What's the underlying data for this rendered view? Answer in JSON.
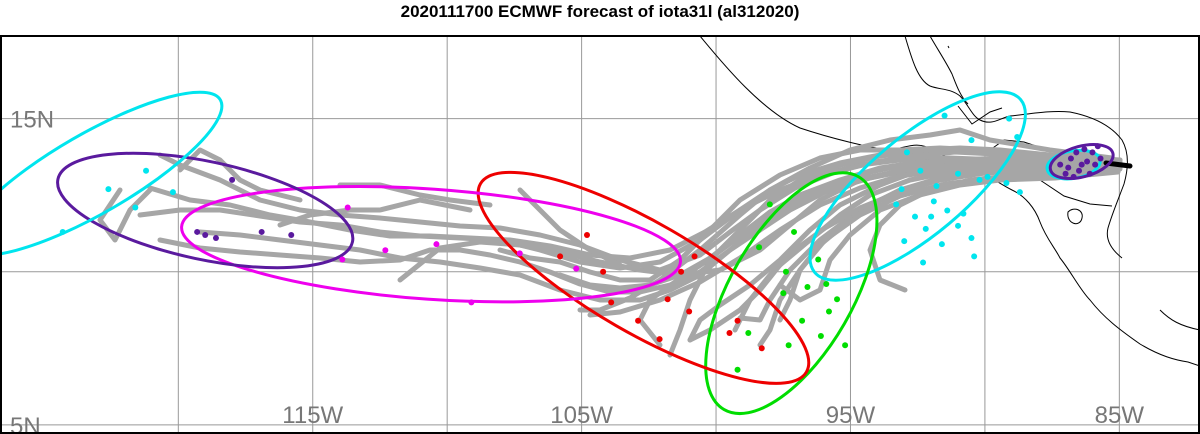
{
  "title": "2020111700 ECMWF forecast of iota31l (al312020)",
  "map": {
    "lon_range": [
      -126,
      -82
    ],
    "lat_range": [
      4.7,
      17.7
    ],
    "lon_gridlines": [
      -120,
      -115,
      -110,
      -105,
      -100,
      -95,
      -90,
      -85
    ],
    "lat_gridlines": [
      5,
      10,
      15
    ],
    "lon_tick_labels": [
      {
        "lon": -115,
        "label": "115W"
      },
      {
        "lon": -105,
        "label": "105W"
      },
      {
        "lon": -95,
        "label": "95W"
      },
      {
        "lon": -85,
        "label": "85W"
      }
    ],
    "lat_tick_labels": [
      {
        "lat": 15,
        "label": "15N"
      },
      {
        "lat": 5,
        "label": "5N"
      }
    ],
    "colors": {
      "track": "#a6a6a6",
      "grid": "#999999",
      "coast": "#000000",
      "current_track": "#000000"
    }
  },
  "ellipses": [
    {
      "name": "ellipse-cyan-early",
      "color": "#00e5ee",
      "lon": -86.7,
      "lat": 13.5,
      "rx_deg": 1.0,
      "ry_deg": 0.45,
      "rot": -10
    },
    {
      "name": "ellipse-purple-early",
      "color": "#5a1a9e",
      "lon": -86.4,
      "lat": 13.6,
      "rx_deg": 1.2,
      "ry_deg": 0.5,
      "rot": -15
    },
    {
      "name": "ellipse-cyan",
      "color": "#00e5ee",
      "lon": -92.5,
      "lat": 12.8,
      "rx_deg": 5.0,
      "ry_deg": 1.6,
      "rot": -40
    },
    {
      "name": "ellipse-green",
      "color": "#00dd00",
      "lon": -97.2,
      "lat": 9.3,
      "rx_deg": 5.0,
      "ry_deg": 2.0,
      "rot": -60
    },
    {
      "name": "ellipse-red",
      "color": "#ee0000",
      "lon": -102.7,
      "lat": 9.8,
      "rx_deg": 7.0,
      "ry_deg": 1.8,
      "rot": 30
    },
    {
      "name": "ellipse-magenta",
      "color": "#ee00ee",
      "lon": -110.6,
      "lat": 10.9,
      "rx_deg": 9.3,
      "ry_deg": 1.8,
      "rot": 4
    },
    {
      "name": "ellipse-purple",
      "color": "#5a1a9e",
      "lon": -119.0,
      "lat": 12.0,
      "rx_deg": 5.6,
      "ry_deg": 1.6,
      "rot": 12
    },
    {
      "name": "ellipse-cyan-late",
      "color": "#00e5ee",
      "lon": -123.2,
      "lat": 13.2,
      "rx_deg": 5.5,
      "ry_deg": 1.3,
      "rot": -30
    }
  ],
  "dot_groups": [
    {
      "color": "#5a1a9e",
      "points": [
        [
          -86.2,
          13.6
        ],
        [
          -86.5,
          13.3
        ],
        [
          -86.8,
          13.7
        ],
        [
          -86.0,
          13.9
        ],
        [
          -86.9,
          13.4
        ],
        [
          -86.3,
          14.0
        ],
        [
          -85.9,
          13.5
        ],
        [
          -86.6,
          13.9
        ],
        [
          -87.0,
          13.2
        ],
        [
          -86.1,
          13.2
        ],
        [
          -85.7,
          13.7
        ],
        [
          -86.4,
          13.5
        ],
        [
          -86.7,
          13.1
        ],
        [
          -85.8,
          14.1
        ],
        [
          -87.2,
          13.5
        ]
      ]
    },
    {
      "color": "#00e5ee",
      "points": [
        [
          -91.5,
          15.1
        ],
        [
          -90.5,
          14.3
        ],
        [
          -92.4,
          13.3
        ],
        [
          -91.8,
          12.8
        ],
        [
          -93.1,
          12.7
        ],
        [
          -92.0,
          11.8
        ],
        [
          -91.0,
          11.5
        ],
        [
          -93.0,
          11.0
        ],
        [
          -92.3,
          10.3
        ],
        [
          -91.4,
          12.0
        ],
        [
          -92.9,
          13.9
        ],
        [
          -90.2,
          13.0
        ],
        [
          -91.0,
          13.2
        ],
        [
          -92.2,
          11.4
        ],
        [
          -93.3,
          12.2
        ],
        [
          -90.8,
          11.9
        ],
        [
          -91.9,
          12.3
        ],
        [
          -92.6,
          11.8
        ],
        [
          -89.2,
          12.9
        ],
        [
          -88.8,
          14.4
        ],
        [
          -90.4,
          10.5
        ],
        [
          -88.7,
          12.6
        ],
        [
          -89.9,
          13.1
        ],
        [
          -91.6,
          10.9
        ],
        [
          -90.5,
          11.1
        ],
        [
          -89.1,
          15.0
        ]
      ]
    },
    {
      "color": "#00dd00",
      "points": [
        [
          -98.0,
          12.2
        ],
        [
          -97.1,
          11.3
        ],
        [
          -96.2,
          10.4
        ],
        [
          -95.5,
          9.1
        ],
        [
          -96.6,
          9.5
        ],
        [
          -97.4,
          10.0
        ],
        [
          -95.8,
          8.7
        ],
        [
          -96.8,
          8.4
        ],
        [
          -95.2,
          7.6
        ],
        [
          -97.3,
          7.6
        ],
        [
          -98.8,
          8.0
        ],
        [
          -99.2,
          6.8
        ],
        [
          -98.4,
          10.8
        ],
        [
          -96.1,
          7.9
        ],
        [
          -97.5,
          9.3
        ],
        [
          -95.9,
          9.6
        ]
      ]
    },
    {
      "color": "#ee0000",
      "points": [
        [
          -105.8,
          10.5
        ],
        [
          -104.8,
          11.2
        ],
        [
          -104.2,
          10.0
        ],
        [
          -103.9,
          9.0
        ],
        [
          -101.8,
          9.1
        ],
        [
          -101.0,
          8.7
        ],
        [
          -102.9,
          8.4
        ],
        [
          -99.5,
          8.0
        ],
        [
          -102.1,
          7.8
        ],
        [
          -101.3,
          10.0
        ],
        [
          -98.3,
          7.5
        ],
        [
          -99.2,
          8.4
        ],
        [
          -100.8,
          10.5
        ]
      ]
    },
    {
      "color": "#ee00ee",
      "points": [
        [
          -110.4,
          10.9
        ],
        [
          -107.3,
          10.6
        ],
        [
          -112.3,
          10.7
        ],
        [
          -113.9,
          10.4
        ],
        [
          -109.1,
          9.0
        ],
        [
          -113.7,
          12.1
        ],
        [
          -105.2,
          10.1
        ]
      ]
    },
    {
      "color": "#5a1a9e",
      "points": [
        [
          -118.0,
          13.0
        ],
        [
          -116.9,
          11.3
        ],
        [
          -115.8,
          11.2
        ],
        [
          -119.3,
          11.3
        ],
        [
          -118.6,
          11.1
        ],
        [
          -119.0,
          11.2
        ]
      ]
    },
    {
      "color": "#00e5ee",
      "points": [
        [
          -121.2,
          13.3
        ],
        [
          -122.6,
          12.7
        ],
        [
          -124.3,
          11.3
        ],
        [
          -120.2,
          12.6
        ],
        [
          -121.6,
          12.1
        ]
      ]
    }
  ]
}
